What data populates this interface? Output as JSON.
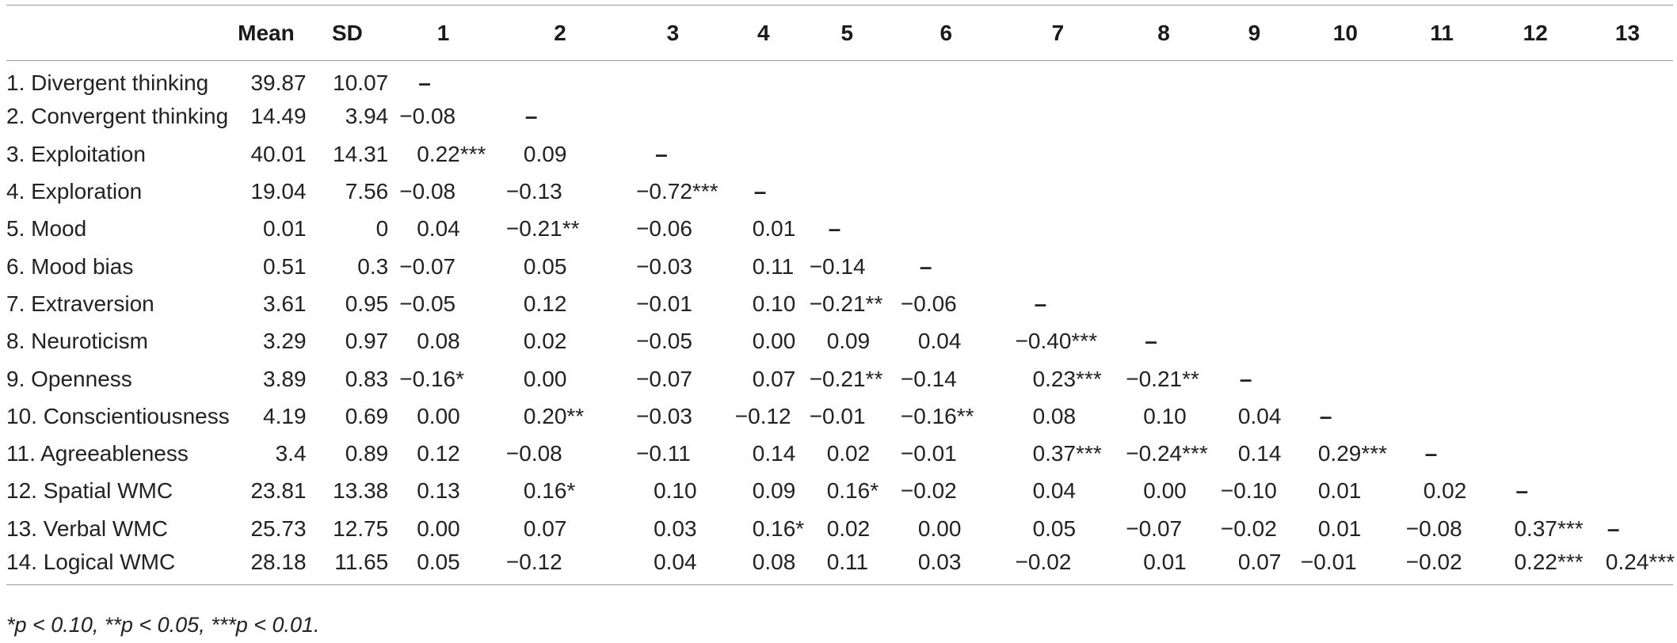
{
  "table": {
    "headers": [
      "",
      "Mean",
      "SD",
      "1",
      "2",
      "3",
      "4",
      "5",
      "6",
      "7",
      "8",
      "9",
      "10",
      "11",
      "12",
      "13"
    ],
    "rows": [
      {
        "label": "1. Divergent thinking",
        "mean": "39.87",
        "sd": "10.07",
        "cells": [
          "–",
          "",
          "",
          "",
          "",
          "",
          "",
          "",
          "",
          "",
          "",
          "",
          ""
        ]
      },
      {
        "label": "2. Convergent thinking",
        "mean": "14.49",
        "sd": "3.94",
        "cells": [
          "−0.08",
          "–",
          "",
          "",
          "",
          "",
          "",
          "",
          "",
          "",
          "",
          "",
          ""
        ]
      },
      {
        "label": "3. Exploitation",
        "mean": "40.01",
        "sd": "14.31",
        "cells": [
          "0.22***",
          "0.09",
          "–",
          "",
          "",
          "",
          "",
          "",
          "",
          "",
          "",
          "",
          ""
        ]
      },
      {
        "label": "4. Exploration",
        "mean": "19.04",
        "sd": "7.56",
        "cells": [
          "−0.08",
          "−0.13",
          "−0.72***",
          "–",
          "",
          "",
          "",
          "",
          "",
          "",
          "",
          "",
          ""
        ]
      },
      {
        "label": "5. Mood",
        "mean": "0.01",
        "sd": "0",
        "cells": [
          "0.04",
          "−0.21**",
          "−0.06",
          "0.01",
          "–",
          "",
          "",
          "",
          "",
          "",
          "",
          "",
          ""
        ]
      },
      {
        "label": "6. Mood bias",
        "mean": "0.51",
        "sd": "0.3",
        "cells": [
          "−0.07",
          "0.05",
          "−0.03",
          "0.11",
          "−0.14",
          "–",
          "",
          "",
          "",
          "",
          "",
          "",
          ""
        ]
      },
      {
        "label": "7. Extraversion",
        "mean": "3.61",
        "sd": "0.95",
        "cells": [
          "−0.05",
          "0.12",
          "−0.01",
          "0.10",
          "−0.21**",
          "−0.06",
          "–",
          "",
          "",
          "",
          "",
          "",
          ""
        ]
      },
      {
        "label": "8. Neuroticism",
        "mean": "3.29",
        "sd": "0.97",
        "cells": [
          "0.08",
          "0.02",
          "−0.05",
          "0.00",
          "0.09",
          "0.04",
          "−0.40***",
          "–",
          "",
          "",
          "",
          "",
          ""
        ]
      },
      {
        "label": "9. Openness",
        "mean": "3.89",
        "sd": "0.83",
        "cells": [
          "−0.16*",
          "0.00",
          "−0.07",
          "0.07",
          "−0.21**",
          "−0.14",
          "0.23***",
          "−0.21**",
          "–",
          "",
          "",
          "",
          ""
        ]
      },
      {
        "label": "10. Conscientiousness",
        "mean": "4.19",
        "sd": "0.69",
        "cells": [
          "0.00",
          "0.20**",
          "−0.03",
          "−0.12",
          "−0.01",
          "−0.16**",
          "0.08",
          "0.10",
          "0.04",
          "–",
          "",
          "",
          ""
        ]
      },
      {
        "label": "11. Agreeableness",
        "mean": "3.4",
        "sd": "0.89",
        "cells": [
          "0.12",
          "−0.08",
          "−0.11",
          "0.14",
          "0.02",
          "−0.01",
          "0.37***",
          "−0.24***",
          "0.14",
          "0.29***",
          "–",
          "",
          ""
        ]
      },
      {
        "label": "12. Spatial WMC",
        "mean": "23.81",
        "sd": "13.38",
        "cells": [
          "0.13",
          "0.16*",
          "0.10",
          "0.09",
          "0.16*",
          "−0.02",
          "0.04",
          "0.00",
          "−0.10",
          "0.01",
          "0.02",
          "–",
          ""
        ]
      },
      {
        "label": "13. Verbal WMC",
        "mean": "25.73",
        "sd": "12.75",
        "cells": [
          "0.00",
          "0.07",
          "0.03",
          "0.16*",
          "0.02",
          "0.00",
          "0.05",
          "−0.07",
          "−0.02",
          "0.01",
          "−0.08",
          "0.37***",
          "–"
        ]
      },
      {
        "label": "14. Logical WMC",
        "mean": "28.18",
        "sd": "11.65",
        "cells": [
          "0.05",
          "−0.12",
          "0.04",
          "0.08",
          "0.11",
          "0.03",
          "−0.02",
          "0.01",
          "0.07",
          "−0.01",
          "−0.02",
          "0.22***",
          "0.24***"
        ]
      }
    ]
  },
  "footnote": "*p < 0.10, **p < 0.05, ***p < 0.01."
}
